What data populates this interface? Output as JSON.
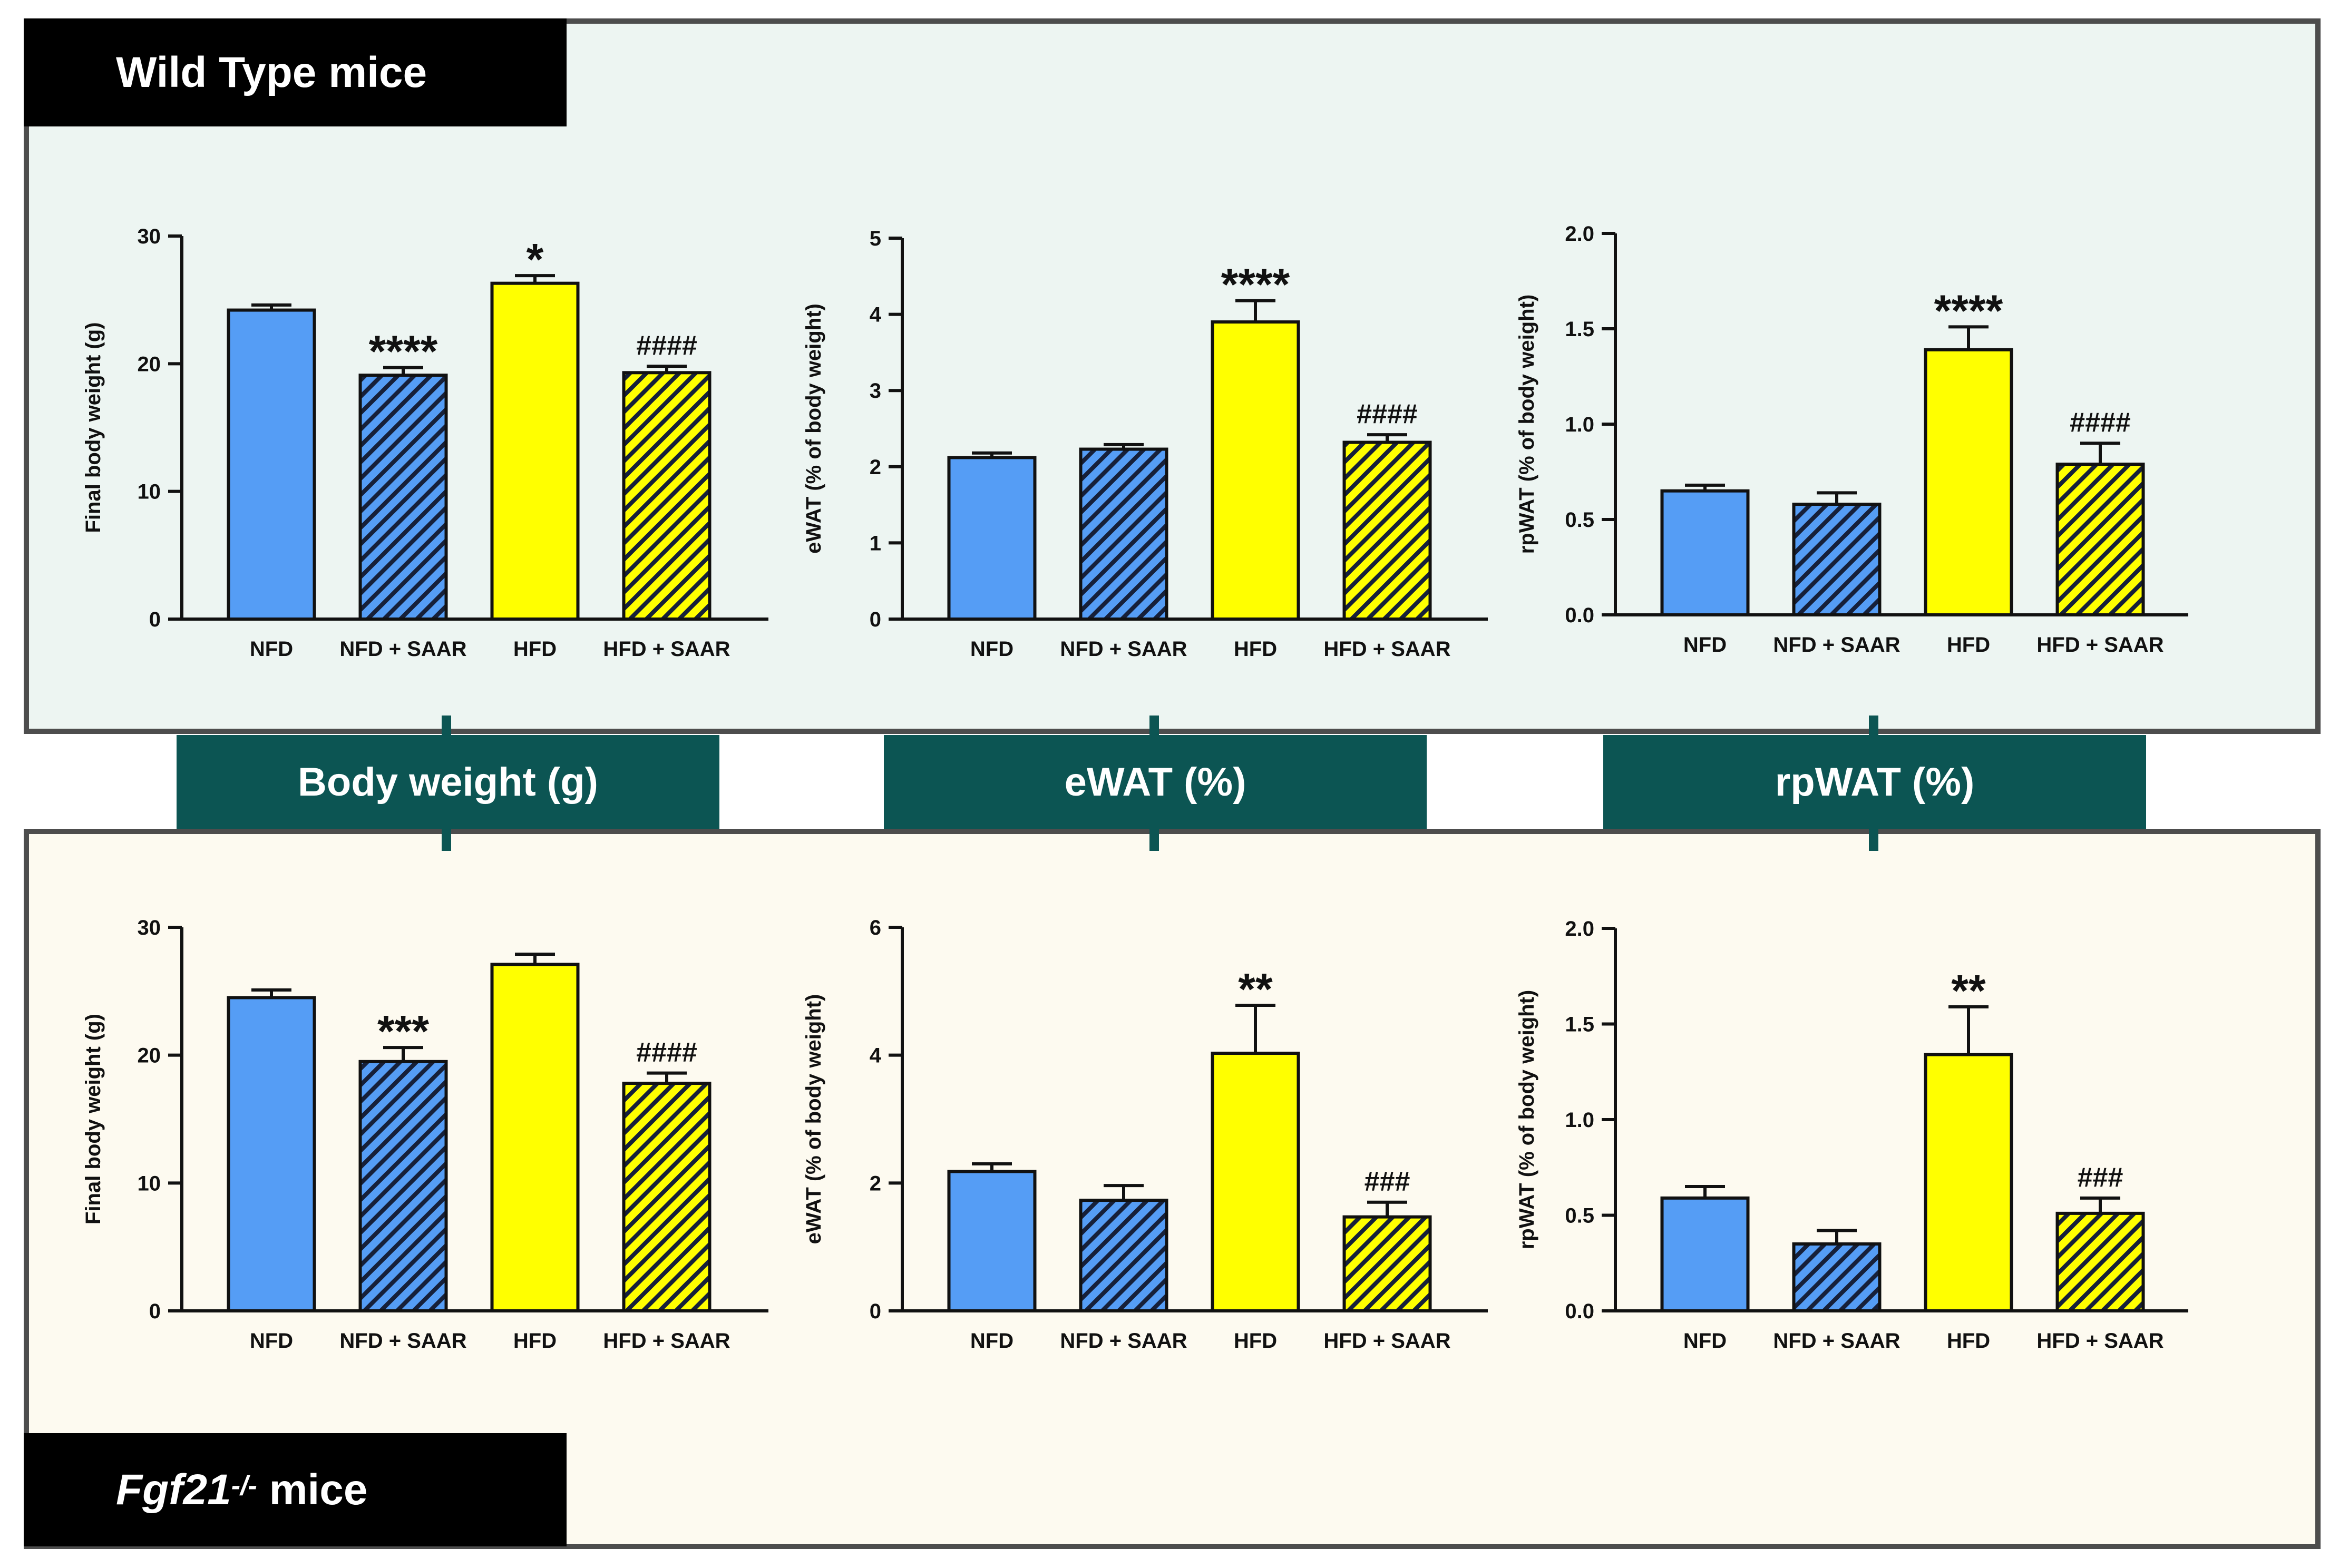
{
  "groups": {
    "wild_type_label": "Wild Type mice",
    "knockout_label_gene": "Fgf21",
    "knockout_label_sup": "-/-",
    "knockout_label_rest": " mice"
  },
  "metrics": [
    "Body weight (g)",
    "eWAT (%)",
    "rpWAT (%)"
  ],
  "colors": {
    "nfd": "#559df5",
    "hfd": "#ffff00",
    "hatch": "#16203a",
    "teal": "#0c5553",
    "wt_background": "#edf5f2",
    "ko_background": "#fdfaf0"
  },
  "chart_data": [
    {
      "type": "bar",
      "group": "Wild Type mice",
      "metric": "Body weight (g)",
      "categories": [
        "NFD",
        "NFD + SAAR",
        "HFD",
        "HFD + SAAR"
      ],
      "values": [
        24.2,
        19.1,
        26.3,
        19.3
      ],
      "errors": [
        0.4,
        0.6,
        0.6,
        0.5
      ],
      "annotations": [
        "",
        "****",
        "*",
        "####"
      ],
      "ylabel": "Final body weight (g)",
      "ylim": [
        0,
        30
      ],
      "yticks": [
        0,
        10,
        20,
        30
      ],
      "ytick_labels": [
        "0",
        "10",
        "20",
        "30"
      ]
    },
    {
      "type": "bar",
      "group": "Wild Type mice",
      "metric": "eWAT (%)",
      "categories": [
        "NFD",
        "NFD + SAAR",
        "HFD",
        "HFD + SAAR"
      ],
      "values": [
        2.12,
        2.23,
        3.9,
        2.32
      ],
      "errors": [
        0.06,
        0.06,
        0.28,
        0.1
      ],
      "annotations": [
        "",
        "",
        "****",
        "####"
      ],
      "ylabel": "eWAT (% of body weight)",
      "ylim": [
        0,
        5
      ],
      "yticks": [
        0,
        1,
        2,
        3,
        4,
        5
      ],
      "ytick_labels": [
        "0",
        "1",
        "2",
        "3",
        "4",
        "5"
      ]
    },
    {
      "type": "bar",
      "group": "Wild Type mice",
      "metric": "rpWAT (%)",
      "categories": [
        "NFD",
        "NFD + SAAR",
        "HFD",
        "HFD + SAAR"
      ],
      "values": [
        0.65,
        0.58,
        1.39,
        0.79
      ],
      "errors": [
        0.03,
        0.06,
        0.12,
        0.11
      ],
      "annotations": [
        "",
        "",
        "****",
        "####"
      ],
      "ylabel": "rpWAT (% of body weight)",
      "ylim": [
        0,
        2
      ],
      "yticks": [
        0,
        0.5,
        1,
        1.5,
        2
      ],
      "ytick_labels": [
        "0.0",
        "0.5",
        "1.0",
        "1.5",
        "2.0"
      ]
    },
    {
      "type": "bar",
      "group": "Fgf21-/- mice",
      "metric": "Body weight (g)",
      "categories": [
        "NFD",
        "NFD + SAAR",
        "HFD",
        "HFD + SAAR"
      ],
      "values": [
        24.5,
        19.5,
        27.1,
        17.8
      ],
      "errors": [
        0.6,
        1.1,
        0.8,
        0.8
      ],
      "annotations": [
        "",
        "***",
        "",
        "####"
      ],
      "ylabel": "Final body weight (g)",
      "ylim": [
        0,
        30
      ],
      "yticks": [
        0,
        10,
        20,
        30
      ],
      "ytick_labels": [
        "0",
        "10",
        "20",
        "30"
      ]
    },
    {
      "type": "bar",
      "group": "Fgf21-/- mice",
      "metric": "eWAT (%)",
      "categories": [
        "NFD",
        "NFD + SAAR",
        "HFD",
        "HFD + SAAR"
      ],
      "values": [
        2.18,
        1.73,
        4.03,
        1.47
      ],
      "errors": [
        0.12,
        0.23,
        0.75,
        0.23
      ],
      "annotations": [
        "",
        "",
        "**",
        "###"
      ],
      "ylabel": "eWAT (% of body weight)",
      "ylim": [
        0,
        6
      ],
      "yticks": [
        0,
        2,
        4,
        6
      ],
      "ytick_labels": [
        "0",
        "2",
        "4",
        "6"
      ]
    },
    {
      "type": "bar",
      "group": "Fgf21-/- mice",
      "metric": "rpWAT (%)",
      "categories": [
        "NFD",
        "NFD + SAAR",
        "HFD",
        "HFD + SAAR"
      ],
      "values": [
        0.59,
        0.35,
        1.34,
        0.51
      ],
      "errors": [
        0.06,
        0.07,
        0.25,
        0.08
      ],
      "annotations": [
        "",
        "",
        "**",
        "###"
      ],
      "ylabel": "rpWAT (% of body weight)",
      "ylim": [
        0,
        2
      ],
      "yticks": [
        0,
        0.5,
        1,
        1.5,
        2
      ],
      "ytick_labels": [
        "0.0",
        "0.5",
        "1.0",
        "1.5",
        "2.0"
      ]
    }
  ]
}
